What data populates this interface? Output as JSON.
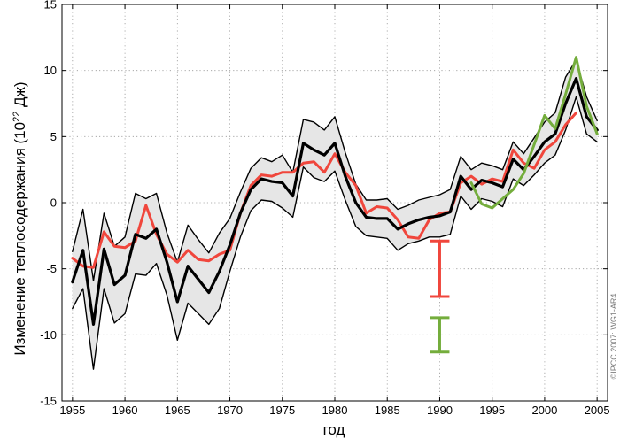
{
  "chart_data": {
    "type": "line",
    "title": "",
    "xlabel": "год",
    "ylabel_prefix": "Изменение теплосодержания (10",
    "ylabel_exp": "22",
    "ylabel_suffix": " Дж)",
    "xlim": [
      1954,
      2006
    ],
    "ylim": [
      -15,
      15
    ],
    "xticks": [
      1955,
      1960,
      1965,
      1970,
      1975,
      1980,
      1985,
      1990,
      1995,
      2000,
      2005
    ],
    "yticks": [
      -15,
      -10,
      -5,
      0,
      5,
      10,
      15
    ],
    "grid": "dotted",
    "colors": {
      "black": "#000000",
      "red": "#f0463c",
      "green": "#74ad3c",
      "band": "#e6e6e6"
    },
    "series": [
      {
        "name": "black",
        "x": [
          1955,
          1956,
          1957,
          1958,
          1959,
          1960,
          1961,
          1962,
          1963,
          1964,
          1965,
          1966,
          1967,
          1968,
          1969,
          1970,
          1971,
          1972,
          1973,
          1974,
          1975,
          1976,
          1977,
          1978,
          1979,
          1980,
          1981,
          1982,
          1983,
          1984,
          1985,
          1986,
          1987,
          1988,
          1989,
          1990,
          1991,
          1992,
          1993,
          1994,
          1995,
          1996,
          1997,
          1998,
          1999,
          2000,
          2001,
          2002,
          2003,
          2004,
          2005
        ],
        "values": [
          -6,
          -3.6,
          -9.2,
          -3.5,
          -6.2,
          -5.5,
          -2.4,
          -2.7,
          -2,
          -4.5,
          -7.5,
          -4.8,
          -5.8,
          -6.8,
          -5.2,
          -3.2,
          -0.8,
          1,
          1.8,
          1.6,
          1.5,
          0.5,
          4.5,
          4,
          3.6,
          4.5,
          2,
          0,
          -1.1,
          -1.2,
          -1.2,
          -2,
          -1.6,
          -1.3,
          -1.1,
          -1,
          -0.7,
          2,
          1,
          1.7,
          1.5,
          1.2,
          3.3,
          2.5,
          3.5,
          4.6,
          5.2,
          7.5,
          9.4,
          6.5,
          5.5
        ]
      },
      {
        "name": "upper_bound",
        "x": [
          1955,
          1956,
          1957,
          1958,
          1959,
          1960,
          1961,
          1962,
          1963,
          1964,
          1965,
          1966,
          1967,
          1968,
          1969,
          1970,
          1971,
          1972,
          1973,
          1974,
          1975,
          1976,
          1977,
          1978,
          1979,
          1980,
          1981,
          1982,
          1983,
          1984,
          1985,
          1986,
          1987,
          1988,
          1989,
          1990,
          1991,
          1992,
          1993,
          1994,
          1995,
          1996,
          1997,
          1998,
          1999,
          2000,
          2001,
          2002,
          2003,
          2004,
          2005
        ],
        "values": [
          -3.7,
          -0.5,
          -5.9,
          -0.8,
          -3.3,
          -2.6,
          0.7,
          0.3,
          0.7,
          -2.3,
          -4.5,
          -1.7,
          -2.8,
          -3.8,
          -2.3,
          -1.2,
          0.8,
          2.6,
          3.4,
          3.1,
          3.6,
          2.3,
          6.3,
          6.1,
          5.5,
          6.5,
          3.8,
          1.4,
          0.2,
          0.2,
          0.3,
          -0.5,
          -0.2,
          0.2,
          0.4,
          0.6,
          1,
          3.5,
          2.5,
          3,
          2.8,
          2.5,
          4.6,
          3.7,
          4.9,
          6.1,
          6.8,
          9.5,
          10.8,
          8,
          6.2
        ]
      },
      {
        "name": "lower_bound",
        "x": [
          1955,
          1956,
          1957,
          1958,
          1959,
          1960,
          1961,
          1962,
          1963,
          1964,
          1965,
          1966,
          1967,
          1968,
          1969,
          1970,
          1971,
          1972,
          1973,
          1974,
          1975,
          1976,
          1977,
          1978,
          1979,
          1980,
          1981,
          1982,
          1983,
          1984,
          1985,
          1986,
          1987,
          1988,
          1989,
          1990,
          1991,
          1992,
          1993,
          1994,
          1995,
          1996,
          1997,
          1998,
          1999,
          2000,
          2001,
          2002,
          2003,
          2004,
          2005
        ],
        "values": [
          -8,
          -6.5,
          -12.6,
          -6.5,
          -9.1,
          -8.4,
          -5.4,
          -5.5,
          -4.6,
          -7,
          -10.4,
          -7.6,
          -8.4,
          -9.2,
          -8,
          -5.2,
          -2.6,
          -0.6,
          0.2,
          0.1,
          -0.4,
          -1.1,
          2.7,
          1.9,
          1.6,
          2.4,
          0.2,
          -1.8,
          -2.5,
          -2.6,
          -2.7,
          -3.6,
          -3.1,
          -2.9,
          -2.6,
          -2.6,
          -2.4,
          0.5,
          -0.5,
          0.3,
          0.1,
          -0.3,
          1.8,
          1.3,
          2.1,
          3,
          3.6,
          5.5,
          8,
          5.2,
          4.6
        ]
      },
      {
        "name": "red",
        "x": [
          1955,
          1956,
          1957,
          1958,
          1959,
          1960,
          1961,
          1962,
          1963,
          1964,
          1965,
          1966,
          1967,
          1968,
          1969,
          1970,
          1971,
          1972,
          1973,
          1974,
          1975,
          1976,
          1977,
          1978,
          1979,
          1980,
          1981,
          1982,
          1983,
          1984,
          1985,
          1986,
          1987,
          1988,
          1989,
          1990,
          1991,
          1992,
          1993,
          1994,
          1995,
          1996,
          1997,
          1998,
          1999,
          2000,
          2001,
          2002,
          2003
        ],
        "values": [
          -4.2,
          -4.8,
          -4.9,
          -2.2,
          -3.3,
          -3.4,
          -2.9,
          -0.2,
          -2.4,
          -3.9,
          -4.5,
          -3.6,
          -4.3,
          -4.4,
          -3.9,
          -3.6,
          -0.8,
          1.3,
          2.1,
          2,
          2.3,
          2.3,
          3,
          3.1,
          2.3,
          3.7,
          2.3,
          1.3,
          -0.8,
          -0.3,
          -0.4,
          -1.3,
          -2.6,
          -2.7,
          -1.3,
          -0.8,
          -0.7,
          1.5,
          2,
          1.4,
          1.8,
          1.6,
          4,
          3,
          2.6,
          4,
          4.6,
          5.9,
          6.8
        ]
      },
      {
        "name": "green",
        "x": [
          1993,
          1994,
          1995,
          1996,
          1997,
          1998,
          1999,
          2000,
          2001,
          2002,
          2003,
          2004,
          2005
        ],
        "values": [
          1.5,
          -0.1,
          -0.4,
          0.3,
          1,
          2.2,
          4.4,
          6.6,
          5.6,
          8.2,
          11,
          7.3,
          5.2
        ]
      }
    ],
    "error_bars": [
      {
        "name": "red",
        "x": 1990,
        "low": -7.1,
        "high": -2.9
      },
      {
        "name": "green",
        "x": 1990,
        "low": -11.3,
        "high": -8.7
      }
    ],
    "watermark": "©IPCC 2007: WG1-AR4"
  }
}
